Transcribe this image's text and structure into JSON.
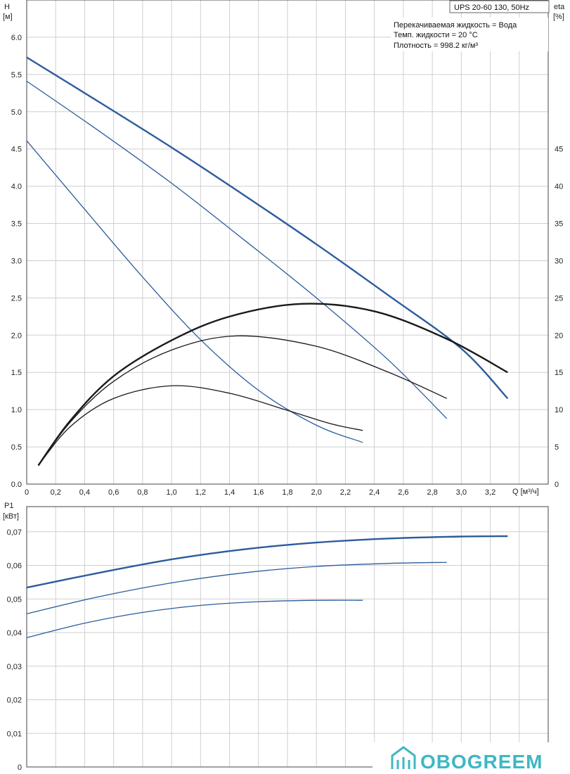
{
  "header": {
    "model": "UPS 20-60 130, 50Hz",
    "notes": [
      "Перекачиваемая жидкость = Вода",
      "Темп. жидкости = 20 °C",
      "Плотность = 998.2 кг/м³"
    ]
  },
  "logo": {
    "text": "OBOGREEM"
  },
  "colors": {
    "head": "#2c5c9c",
    "efficiency": "#1a1a1a",
    "power": "#2c5c9c",
    "grid": "#cfcfcf",
    "logo": "#3fb7c4"
  },
  "chart_data": [
    {
      "type": "line",
      "name": "head-efficiency",
      "x_axis": {
        "label_line1": "Q [м³/ч]",
        "range": [
          0,
          3.6
        ],
        "ticks": [
          "0",
          "0,2",
          "0,4",
          "0,6",
          "0,8",
          "1,0",
          "1,2",
          "1,4",
          "1,6",
          "1,8",
          "2,0",
          "2,2",
          "2,4",
          "2,6",
          "2,8",
          "3,0",
          "3,2"
        ]
      },
      "y_left": {
        "label_line1": "H",
        "label_line2": "[м]",
        "range": [
          0,
          6.5
        ],
        "ticks": [
          "0.0",
          "0.5",
          "1.0",
          "1.5",
          "2.0",
          "2.5",
          "3.0",
          "3.5",
          "4.0",
          "4.5",
          "5.0",
          "5.5",
          "6.0"
        ]
      },
      "y_right": {
        "label_line1": "eta",
        "label_line2": "[%]",
        "range": [
          0,
          65
        ],
        "ticks": [
          "0",
          "5",
          "10",
          "15",
          "20",
          "25",
          "30",
          "35",
          "40",
          "45"
        ]
      },
      "grid": true,
      "head_series": [
        {
          "speed": 3,
          "x": [
            0,
            0.5,
            1.0,
            1.5,
            2.0,
            2.5,
            3.0,
            3.32
          ],
          "y": [
            5.73,
            5.13,
            4.52,
            3.88,
            3.22,
            2.53,
            1.82,
            1.15
          ]
        },
        {
          "speed": 2,
          "x": [
            0,
            0.5,
            1.0,
            1.5,
            2.0,
            2.5,
            2.9
          ],
          "y": [
            5.41,
            4.74,
            4.04,
            3.28,
            2.5,
            1.66,
            0.88
          ]
        },
        {
          "speed": 1,
          "x": [
            0,
            0.4,
            0.8,
            1.2,
            1.6,
            2.0,
            2.32
          ],
          "y": [
            4.61,
            3.69,
            2.78,
            1.94,
            1.26,
            0.79,
            0.56
          ]
        }
      ],
      "efficiency_series": [
        {
          "speed": 3,
          "x": [
            0.08,
            0.3,
            0.6,
            1.0,
            1.4,
            1.9,
            2.4,
            2.9,
            3.32
          ],
          "y": [
            2.5,
            8.5,
            14.5,
            19.3,
            22.5,
            24.2,
            23.2,
            19.5,
            15.0
          ]
        },
        {
          "speed": 2,
          "x": [
            0.08,
            0.3,
            0.6,
            1.0,
            1.45,
            2.0,
            2.5,
            2.9
          ],
          "y": [
            2.5,
            8.3,
            13.8,
            18.0,
            19.9,
            18.5,
            15.0,
            11.5
          ]
        },
        {
          "speed": 1,
          "x": [
            0.08,
            0.3,
            0.6,
            1.0,
            1.4,
            1.8,
            2.1,
            2.32
          ],
          "y": [
            2.5,
            7.7,
            11.5,
            13.2,
            12.2,
            9.9,
            8.1,
            7.2
          ]
        }
      ]
    },
    {
      "type": "line",
      "name": "power",
      "x_axis": {
        "range": [
          0,
          3.6
        ]
      },
      "y_axis": {
        "label_line1": "P1",
        "label_line2": "[кВт]",
        "range": [
          0,
          0.0775
        ],
        "ticks": [
          "0",
          "0,01",
          "0,02",
          "0,03",
          "0,04",
          "0,05",
          "0,06",
          "0,07"
        ]
      },
      "grid": true,
      "series": [
        {
          "speed": 3,
          "x": [
            0,
            0.5,
            1.0,
            1.5,
            2.0,
            2.5,
            3.0,
            3.32
          ],
          "y": [
            0.0534,
            0.0578,
            0.0618,
            0.0648,
            0.0668,
            0.068,
            0.0686,
            0.0687
          ]
        },
        {
          "speed": 2,
          "x": [
            0,
            0.5,
            1.0,
            1.5,
            2.0,
            2.5,
            2.9
          ],
          "y": [
            0.0456,
            0.0507,
            0.0548,
            0.0578,
            0.0597,
            0.0606,
            0.0609
          ]
        },
        {
          "speed": 1,
          "x": [
            0,
            0.4,
            0.8,
            1.2,
            1.6,
            2.0,
            2.32
          ],
          "y": [
            0.0385,
            0.0428,
            0.046,
            0.0481,
            0.0492,
            0.0496,
            0.0496
          ]
        }
      ]
    }
  ]
}
